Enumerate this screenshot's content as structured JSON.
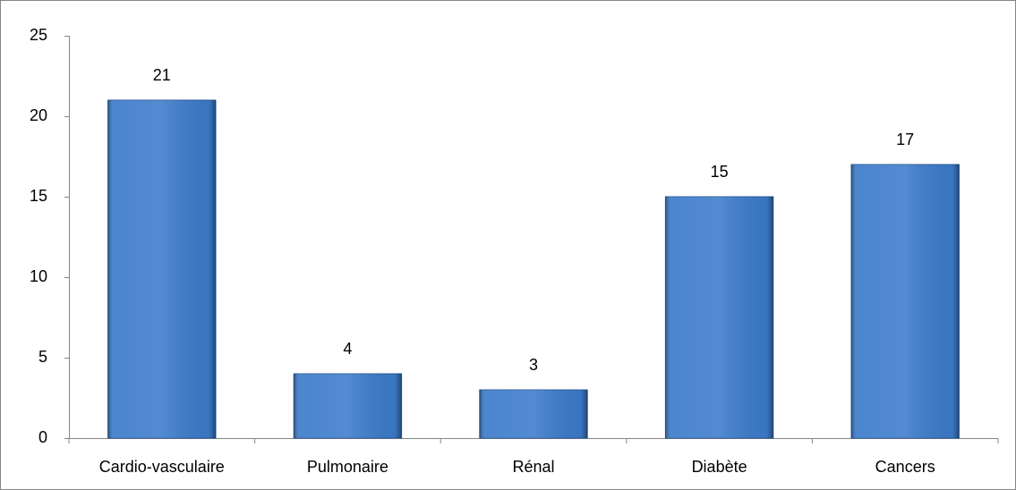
{
  "chart_data": {
    "type": "bar",
    "categories": [
      "Cardio-vasculaire",
      "Pulmonaire",
      "Rénal",
      "Diabète",
      "Cancers"
    ],
    "values": [
      21,
      4,
      3,
      15,
      17
    ],
    "color": "#3c7bcb",
    "ylim": [
      0,
      25
    ],
    "yticks": [
      0,
      5,
      10,
      15,
      20,
      25
    ],
    "grid": false
  }
}
